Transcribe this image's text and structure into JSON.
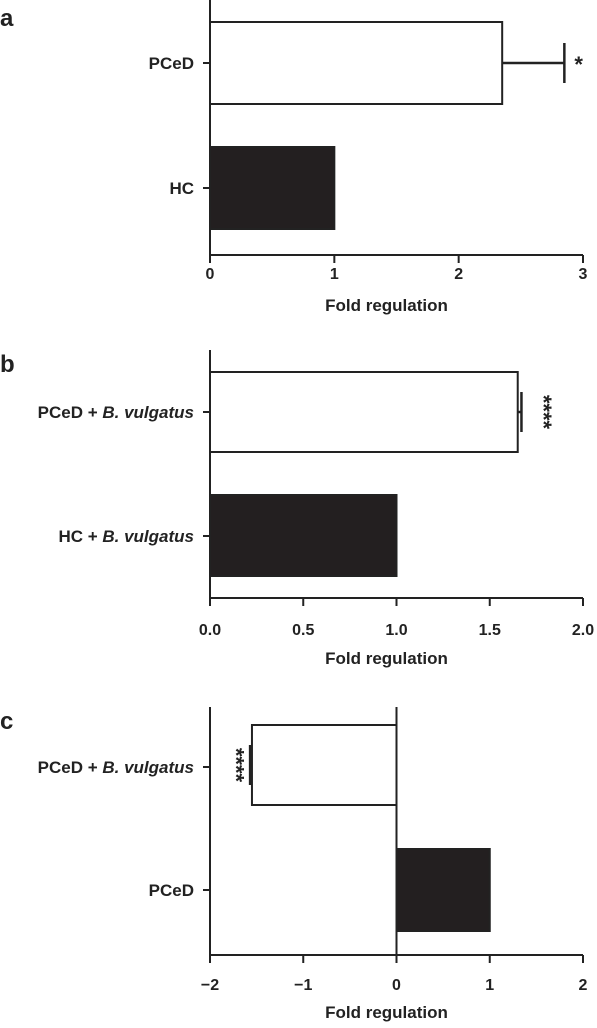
{
  "chart_data": [
    {
      "panel": "a",
      "type": "bar",
      "orientation": "horizontal",
      "categories": [
        {
          "name": "PCeD",
          "italic": ""
        },
        {
          "name": "HC",
          "italic": ""
        }
      ],
      "values": [
        2.35,
        1.0
      ],
      "errors": [
        0.5,
        0
      ],
      "significance": [
        "*",
        ""
      ],
      "fills": [
        "#ffffff",
        "#231f20"
      ],
      "xlabel": "Fold regulation",
      "xlim": [
        0,
        3
      ],
      "xticks": [
        0,
        1,
        2,
        3
      ],
      "xtick_labels": [
        "0",
        "1",
        "2",
        "3"
      ]
    },
    {
      "panel": "b",
      "type": "bar",
      "orientation": "horizontal",
      "categories": [
        {
          "name": "PCeD + ",
          "italic": "B. vulgatus"
        },
        {
          "name": "HC + ",
          "italic": "B. vulgatus"
        }
      ],
      "values": [
        1.65,
        1.0
      ],
      "errors": [
        0.02,
        0
      ],
      "significance": [
        "****",
        ""
      ],
      "fills": [
        "#ffffff",
        "#231f20"
      ],
      "xlabel": "Fold regulation",
      "xlim": [
        0,
        2
      ],
      "xticks": [
        0,
        0.5,
        1,
        1.5,
        2
      ],
      "xtick_labels": [
        "0.0",
        "0.5",
        "1.0",
        "1.5",
        "2.0"
      ]
    },
    {
      "panel": "c",
      "type": "bar",
      "orientation": "horizontal",
      "categories": [
        {
          "name": "PCeD + ",
          "italic": "B. vulgatus"
        },
        {
          "name": "PCeD",
          "italic": ""
        }
      ],
      "values": [
        -1.55,
        1.0
      ],
      "errors": [
        0.02,
        0
      ],
      "significance": [
        "****",
        ""
      ],
      "fills": [
        "#ffffff",
        "#231f20"
      ],
      "xlabel": "Fold regulation",
      "xlim": [
        -2,
        2
      ],
      "xticks": [
        -2,
        -1,
        0,
        1,
        2
      ],
      "xtick_labels": [
        "−2",
        "−1",
        "0",
        "1",
        "2"
      ]
    }
  ]
}
